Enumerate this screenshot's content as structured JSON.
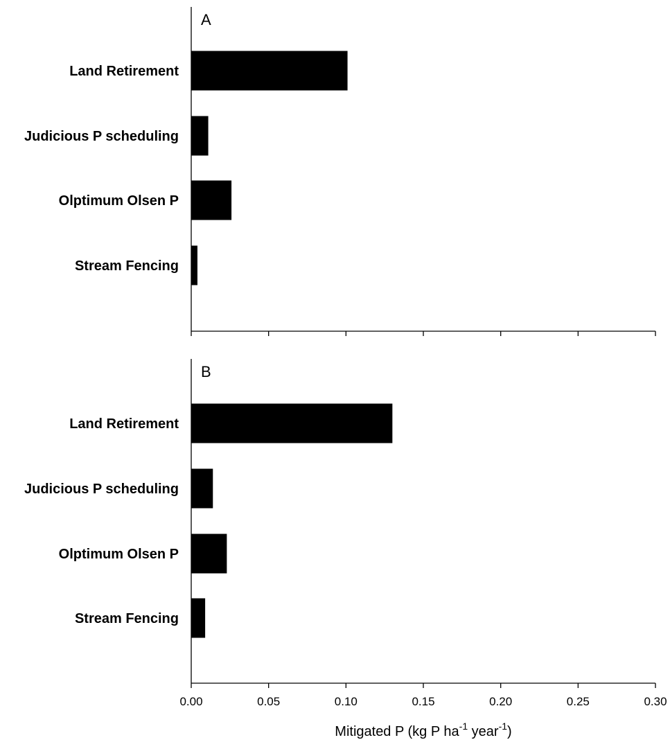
{
  "chart_data": [
    {
      "type": "bar",
      "orientation": "horizontal",
      "panel_label": "A",
      "categories": [
        "Land Retirement",
        "Judicious P scheduling",
        "Olptimum Olsen P",
        "Stream Fencing"
      ],
      "values": [
        0.101,
        0.011,
        0.026,
        0.004
      ],
      "xlim": [
        0,
        0.3
      ],
      "xticks": [
        "0.00",
        "0.05",
        "0.10",
        "0.15",
        "0.20",
        "0.25",
        "0.30"
      ],
      "xtick_values": [
        0,
        0.05,
        0.1,
        0.15,
        0.2,
        0.25,
        0.3
      ],
      "show_xtick_labels": false,
      "grid": false,
      "color": "#000000"
    },
    {
      "type": "bar",
      "orientation": "horizontal",
      "panel_label": "B",
      "categories": [
        "Land Retirement",
        "Judicious P scheduling",
        "Olptimum Olsen P",
        "Stream Fencing"
      ],
      "values": [
        0.13,
        0.014,
        0.023,
        0.009
      ],
      "xlim": [
        0,
        0.3
      ],
      "xticks": [
        "0.00",
        "0.05",
        "0.10",
        "0.15",
        "0.20",
        "0.25",
        "0.30"
      ],
      "xtick_values": [
        0,
        0.05,
        0.1,
        0.15,
        0.2,
        0.25,
        0.3
      ],
      "show_xtick_labels": true,
      "grid": false,
      "color": "#000000"
    }
  ],
  "xlabel": {
    "main": "Mitigated P (kg P ha",
    "sup1": "-1",
    "mid": " year",
    "sup2": "-1",
    "end": ")"
  }
}
